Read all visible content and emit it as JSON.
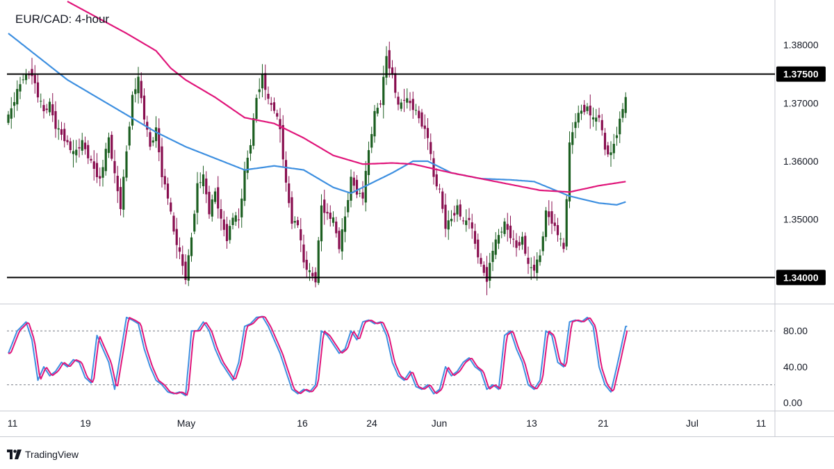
{
  "chart_data": {
    "type": "candlestick",
    "title": "EUR/CAD: 4-hour",
    "price_axis": {
      "ticks": [
        "1.38000",
        "1.37000",
        "1.36000",
        "1.35000"
      ],
      "tick_values": [
        1.38,
        1.37,
        1.36,
        1.35
      ],
      "range": [
        1.3355,
        1.3875
      ]
    },
    "levels": [
      {
        "value": 1.375,
        "label": "1.37500"
      },
      {
        "value": 1.34,
        "label": "1.34000"
      }
    ],
    "x_axis": {
      "labels": [
        "11",
        "19",
        "May",
        "16",
        "24",
        "Jun",
        "13",
        "21",
        "Jul",
        "11"
      ]
    },
    "indicator": {
      "ticks": [
        "80.00",
        "40.00",
        "0.00"
      ],
      "tick_values": [
        80,
        40,
        0
      ],
      "range": [
        -8,
        108
      ],
      "guide_lines": [
        80,
        20
      ]
    },
    "series_colors": {
      "up_candle": "#1b5e20",
      "down_candle": "#880e4f",
      "ma_fast": "#3d8fe0",
      "ma_slow": "#e0157a",
      "level_line": "#000000"
    },
    "price_path": [
      [
        0,
        1.3675
      ],
      [
        3,
        1.372
      ],
      [
        5,
        1.3745
      ],
      [
        8,
        1.3752
      ],
      [
        10,
        1.3712
      ],
      [
        12,
        1.3685
      ],
      [
        14,
        1.3698
      ],
      [
        16,
        1.366
      ],
      [
        19,
        1.364
      ],
      [
        22,
        1.3612
      ],
      [
        25,
        1.3632
      ],
      [
        28,
        1.3598
      ],
      [
        31,
        1.3568
      ],
      [
        34,
        1.364
      ],
      [
        36,
        1.3575
      ],
      [
        38,
        1.3522
      ],
      [
        40,
        1.3618
      ],
      [
        42,
        1.3712
      ],
      [
        44,
        1.374
      ],
      [
        46,
        1.3675
      ],
      [
        48,
        1.3625
      ],
      [
        50,
        1.3655
      ],
      [
        52,
        1.3578
      ],
      [
        54,
        1.3538
      ],
      [
        56,
        1.3478
      ],
      [
        58,
        1.344
      ],
      [
        60,
        1.34
      ],
      [
        62,
        1.347
      ],
      [
        64,
        1.356
      ],
      [
        66,
        1.3572
      ],
      [
        68,
        1.3512
      ],
      [
        70,
        1.3548
      ],
      [
        72,
        1.3498
      ],
      [
        74,
        1.3468
      ],
      [
        76,
        1.3505
      ],
      [
        78,
        1.3498
      ],
      [
        80,
        1.358
      ],
      [
        82,
        1.3632
      ],
      [
        84,
        1.371
      ],
      [
        86,
        1.3748
      ],
      [
        88,
        1.3702
      ],
      [
        90,
        1.369
      ],
      [
        92,
        1.3655
      ],
      [
        94,
        1.356
      ],
      [
        96,
        1.3498
      ],
      [
        98,
        1.3492
      ],
      [
        100,
        1.3425
      ],
      [
        102,
        1.3408
      ],
      [
        104,
        1.3396
      ],
      [
        106,
        1.3525
      ],
      [
        108,
        1.3508
      ],
      [
        110,
        1.3498
      ],
      [
        112,
        1.3452
      ],
      [
        114,
        1.3505
      ],
      [
        116,
        1.357
      ],
      [
        118,
        1.3548
      ],
      [
        120,
        1.3538
      ],
      [
        122,
        1.3618
      ],
      [
        124,
        1.3682
      ],
      [
        126,
        1.3702
      ],
      [
        128,
        1.3782
      ],
      [
        130,
        1.3748
      ],
      [
        132,
        1.3692
      ],
      [
        134,
        1.3708
      ],
      [
        136,
        1.37
      ],
      [
        138,
        1.3685
      ],
      [
        140,
        1.3665
      ],
      [
        142,
        1.3642
      ],
      [
        144,
        1.3572
      ],
      [
        146,
        1.3548
      ],
      [
        148,
        1.3488
      ],
      [
        150,
        1.3502
      ],
      [
        152,
        1.3522
      ],
      [
        154,
        1.3492
      ],
      [
        156,
        1.3502
      ],
      [
        158,
        1.3458
      ],
      [
        160,
        1.342
      ],
      [
        162,
        1.3398
      ],
      [
        164,
        1.3448
      ],
      [
        166,
        1.3472
      ],
      [
        168,
        1.3492
      ],
      [
        170,
        1.3472
      ],
      [
        172,
        1.3452
      ],
      [
        174,
        1.3468
      ],
      [
        176,
        1.3418
      ],
      [
        178,
        1.3415
      ],
      [
        180,
        1.3438
      ],
      [
        182,
        1.3512
      ],
      [
        184,
        1.3498
      ],
      [
        186,
        1.3475
      ],
      [
        188,
        1.3448
      ],
      [
        190,
        1.3628
      ],
      [
        192,
        1.3672
      ],
      [
        194,
        1.3688
      ],
      [
        196,
        1.3692
      ],
      [
        198,
        1.367
      ],
      [
        200,
        1.3678
      ],
      [
        202,
        1.362
      ],
      [
        204,
        1.3612
      ],
      [
        206,
        1.365
      ],
      [
        208,
        1.3692
      ],
      [
        209,
        1.3705
      ]
    ],
    "ma_fast": [
      [
        0,
        1.382
      ],
      [
        20,
        1.374
      ],
      [
        40,
        1.368
      ],
      [
        50,
        1.365
      ],
      [
        60,
        1.3625
      ],
      [
        70,
        1.3605
      ],
      [
        80,
        1.3585
      ],
      [
        90,
        1.3592
      ],
      [
        100,
        1.3585
      ],
      [
        110,
        1.3555
      ],
      [
        116,
        1.3545
      ],
      [
        120,
        1.3555
      ],
      [
        130,
        1.358
      ],
      [
        137,
        1.36
      ],
      [
        142,
        1.36
      ],
      [
        150,
        1.358
      ],
      [
        160,
        1.357
      ],
      [
        170,
        1.3568
      ],
      [
        178,
        1.3565
      ],
      [
        190,
        1.354
      ],
      [
        200,
        1.3528
      ],
      [
        206,
        1.3525
      ],
      [
        209,
        1.353
      ]
    ],
    "ma_slow": [
      [
        20,
        1.3875
      ],
      [
        40,
        1.382
      ],
      [
        50,
        1.379
      ],
      [
        55,
        1.376
      ],
      [
        60,
        1.374
      ],
      [
        70,
        1.371
      ],
      [
        80,
        1.3675
      ],
      [
        90,
        1.3665
      ],
      [
        100,
        1.364
      ],
      [
        110,
        1.361
      ],
      [
        120,
        1.3595
      ],
      [
        130,
        1.3597
      ],
      [
        137,
        1.3595
      ],
      [
        150,
        1.358
      ],
      [
        160,
        1.357
      ],
      [
        170,
        1.356
      ],
      [
        180,
        1.355
      ],
      [
        190,
        1.3547
      ],
      [
        200,
        1.3558
      ],
      [
        209,
        1.3565
      ]
    ],
    "stoch_path": [
      [
        0,
        55
      ],
      [
        3,
        80
      ],
      [
        6,
        90
      ],
      [
        8,
        70
      ],
      [
        10,
        25
      ],
      [
        12,
        40
      ],
      [
        14,
        30
      ],
      [
        16,
        35
      ],
      [
        18,
        45
      ],
      [
        20,
        40
      ],
      [
        22,
        48
      ],
      [
        24,
        45
      ],
      [
        26,
        28
      ],
      [
        28,
        22
      ],
      [
        30,
        75
      ],
      [
        32,
        60
      ],
      [
        34,
        45
      ],
      [
        36,
        15
      ],
      [
        38,
        55
      ],
      [
        40,
        95
      ],
      [
        42,
        92
      ],
      [
        44,
        88
      ],
      [
        46,
        60
      ],
      [
        48,
        40
      ],
      [
        50,
        25
      ],
      [
        52,
        20
      ],
      [
        54,
        12
      ],
      [
        56,
        10
      ],
      [
        58,
        12
      ],
      [
        60,
        8
      ],
      [
        62,
        80
      ],
      [
        64,
        80
      ],
      [
        66,
        90
      ],
      [
        68,
        80
      ],
      [
        70,
        60
      ],
      [
        72,
        45
      ],
      [
        74,
        35
      ],
      [
        76,
        25
      ],
      [
        78,
        45
      ],
      [
        80,
        85
      ],
      [
        82,
        88
      ],
      [
        84,
        95
      ],
      [
        86,
        96
      ],
      [
        88,
        85
      ],
      [
        90,
        70
      ],
      [
        92,
        55
      ],
      [
        94,
        35
      ],
      [
        96,
        15
      ],
      [
        98,
        10
      ],
      [
        100,
        15
      ],
      [
        102,
        12
      ],
      [
        104,
        20
      ],
      [
        106,
        80
      ],
      [
        108,
        75
      ],
      [
        110,
        65
      ],
      [
        112,
        55
      ],
      [
        114,
        60
      ],
      [
        116,
        80
      ],
      [
        118,
        70
      ],
      [
        120,
        90
      ],
      [
        122,
        92
      ],
      [
        124,
        88
      ],
      [
        126,
        90
      ],
      [
        128,
        75
      ],
      [
        130,
        45
      ],
      [
        132,
        30
      ],
      [
        134,
        25
      ],
      [
        136,
        35
      ],
      [
        138,
        18
      ],
      [
        140,
        15
      ],
      [
        142,
        20
      ],
      [
        144,
        10
      ],
      [
        146,
        15
      ],
      [
        148,
        40
      ],
      [
        150,
        30
      ],
      [
        152,
        35
      ],
      [
        154,
        45
      ],
      [
        156,
        50
      ],
      [
        158,
        40
      ],
      [
        160,
        35
      ],
      [
        162,
        15
      ],
      [
        164,
        20
      ],
      [
        166,
        15
      ],
      [
        168,
        75
      ],
      [
        170,
        80
      ],
      [
        172,
        60
      ],
      [
        174,
        45
      ],
      [
        176,
        20
      ],
      [
        178,
        15
      ],
      [
        180,
        25
      ],
      [
        182,
        80
      ],
      [
        184,
        75
      ],
      [
        186,
        45
      ],
      [
        188,
        40
      ],
      [
        190,
        90
      ],
      [
        192,
        92
      ],
      [
        194,
        90
      ],
      [
        196,
        95
      ],
      [
        198,
        85
      ],
      [
        200,
        40
      ],
      [
        202,
        20
      ],
      [
        204,
        12
      ],
      [
        206,
        40
      ],
      [
        208,
        70
      ],
      [
        209,
        85
      ]
    ]
  },
  "brand": {
    "name": "TradingView"
  }
}
